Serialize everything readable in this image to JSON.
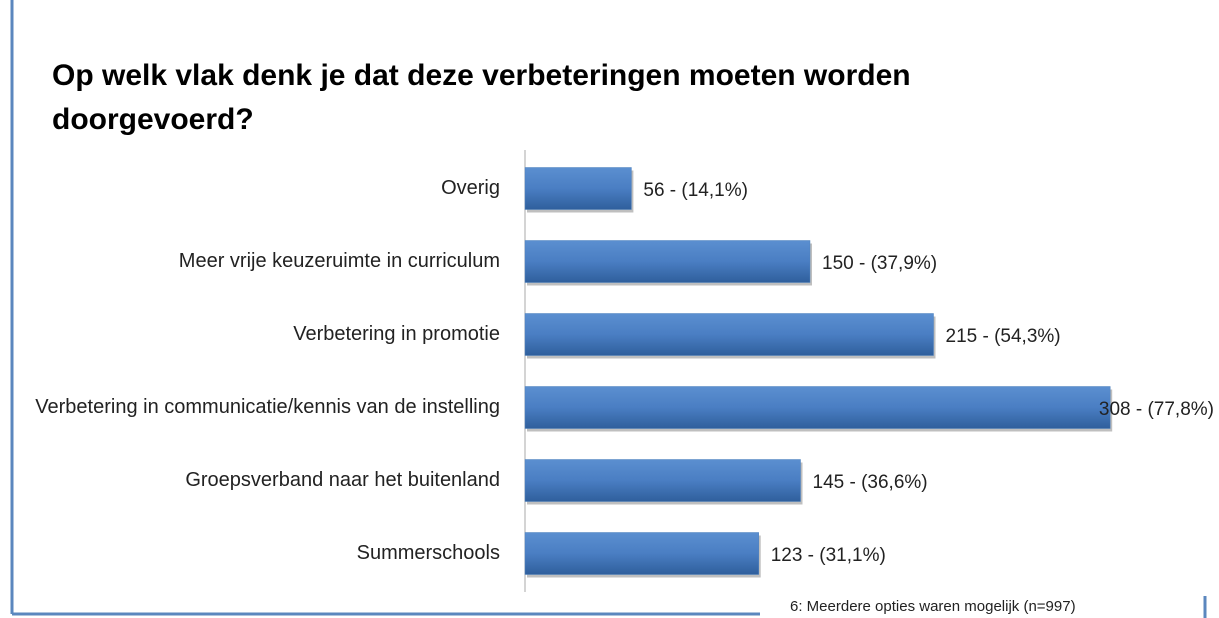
{
  "chart_data": {
    "type": "bar",
    "orientation": "horizontal",
    "title": "Op welk vlak denk je dat deze verbeteringen moeten worden doorgevoerd?",
    "categories": [
      "Overig",
      "Meer vrije keuzeruimte in curriculum",
      "Verbetering in promotie",
      "Verbetering in communicatie/kennis van de instelling",
      "Groepsverband naar het buitenland",
      "Summerschools"
    ],
    "values": [
      56,
      150,
      215,
      308,
      145,
      123
    ],
    "value_labels": [
      "56 - (14,1%)",
      "150 - (37,9%)",
      "215 - (54,3%)",
      "308 - (77,8%)",
      "145 - (36,6%)",
      "123 - (31,1%)"
    ],
    "color": "#4f81bd",
    "xlim": [
      0,
      320
    ],
    "footnote": "6: Meerdere opties waren mogelijk (n=997)"
  }
}
